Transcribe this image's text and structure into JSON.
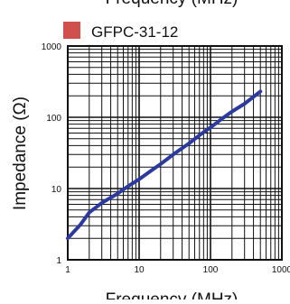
{
  "page_title": "Frequency (MHz)",
  "legend": {
    "label": "GFPC-31-12",
    "color": "#d0504e"
  },
  "chart_data": {
    "type": "line",
    "title": "Frequency (MHz)",
    "xlabel": "Frequency (MHz)",
    "ylabel": "Impedance (Ω)",
    "xscale": "log",
    "yscale": "log",
    "xlim": [
      1,
      1000
    ],
    "ylim": [
      1,
      1000
    ],
    "xticks": [
      "1",
      "10",
      "100",
      "1000"
    ],
    "yticks": [
      "1000",
      "100",
      "10",
      "1"
    ],
    "grid": true,
    "legend_position": "top",
    "series": [
      {
        "name": "GFPC-31-12",
        "color": "#2b3a9c",
        "x": [
          1,
          1.5,
          2,
          3,
          5,
          7,
          10,
          15,
          20,
          30,
          50,
          70,
          100,
          150,
          200,
          300,
          500
        ],
        "y": [
          2,
          3.1,
          4.6,
          6.3,
          8.5,
          10.8,
          13.5,
          18,
          22,
          30,
          43,
          56,
          72,
          98,
          120,
          155,
          230
        ]
      }
    ]
  }
}
